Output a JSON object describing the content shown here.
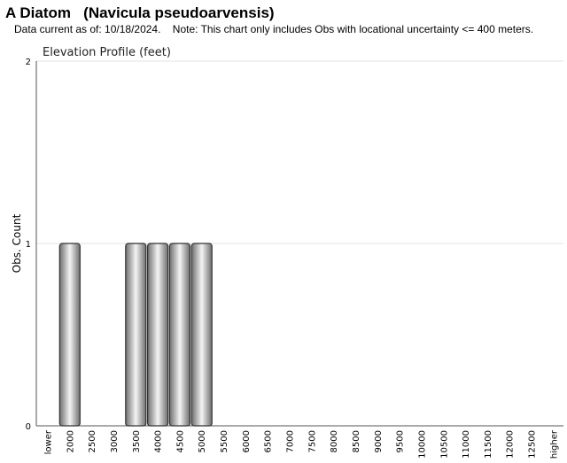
{
  "header": {
    "title": "A Diatom   (Navicula pseudoarvensis)",
    "subtitle": "Data current as of: 10/18/2024.    Note: This chart only includes Obs with locational uncertainty <= 400 meters."
  },
  "chart_data": {
    "type": "bar",
    "title": "Elevation Profile (feet)",
    "xlabel": "",
    "ylabel": "Obs. Count",
    "ylim": [
      0,
      2
    ],
    "yticks": [
      0,
      1,
      2
    ],
    "grid": true,
    "categories": [
      "lower",
      "2000",
      "2500",
      "3000",
      "3500",
      "4000",
      "4500",
      "5000",
      "5500",
      "6000",
      "6500",
      "7000",
      "7500",
      "8000",
      "8500",
      "9000",
      "9500",
      "10000",
      "10500",
      "11000",
      "11500",
      "12000",
      "12500",
      "higher"
    ],
    "values": [
      0,
      1,
      0,
      0,
      1,
      1,
      1,
      1,
      0,
      0,
      0,
      0,
      0,
      0,
      0,
      0,
      0,
      0,
      0,
      0,
      0,
      0,
      0,
      0
    ],
    "colors": {
      "bar_dark": "#6e6e6e",
      "bar_light": "#f4f4f4",
      "bar_stroke": "#333333",
      "grid": "#e3e3e3",
      "axis": "#555555"
    }
  }
}
